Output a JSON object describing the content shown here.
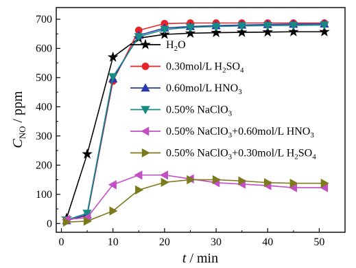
{
  "chart_data": {
    "type": "line",
    "xlabel": {
      "symbol": "t",
      "unit": " / min"
    },
    "ylabel": {
      "symbol": "C",
      "subscript": "NO",
      "unit": " / ppm"
    },
    "xlim": [
      -1,
      55
    ],
    "ylim": [
      -30,
      740
    ],
    "xticks": [
      0,
      10,
      20,
      30,
      40,
      50
    ],
    "yticks": [
      0,
      100,
      200,
      300,
      400,
      500,
      600,
      700
    ],
    "xtick_labels": [
      "0",
      "10",
      "20",
      "30",
      "40",
      "50"
    ],
    "ytick_labels": [
      "0",
      "100",
      "200",
      "300",
      "400",
      "500",
      "600",
      "700"
    ],
    "grid": false,
    "legend_position": "center-right",
    "series": [
      {
        "name": "H2O",
        "legend_parts": [
          [
            "H",
            ""
          ],
          [
            "2",
            "sub"
          ],
          [
            "O",
            ""
          ]
        ],
        "color": "#000000",
        "marker": "star",
        "x": [
          1,
          5,
          10,
          15,
          20,
          25,
          30,
          35,
          40,
          45,
          51
        ],
        "y": [
          18,
          238,
          570,
          635,
          648,
          652,
          654,
          655,
          656,
          657,
          657
        ]
      },
      {
        "name": "0.30mol/L H2SO4",
        "legend_parts": [
          [
            "0.30mol/L H",
            ""
          ],
          [
            "2",
            "sub"
          ],
          [
            "SO",
            ""
          ],
          [
            "4",
            "sub"
          ]
        ],
        "color": "#e8232a",
        "marker": "circle",
        "x": [
          1,
          5,
          10,
          15,
          20,
          25,
          30,
          35,
          40,
          45,
          51
        ],
        "y": [
          10,
          28,
          488,
          662,
          685,
          687,
          687,
          687,
          687,
          687,
          687
        ]
      },
      {
        "name": "0.60mol/L HNO3",
        "legend_parts": [
          [
            "0.60mol/L HNO",
            ""
          ],
          [
            "3",
            "sub"
          ]
        ],
        "color": "#2a3aa8",
        "marker": "triangle-up",
        "x": [
          1,
          5,
          10,
          15,
          20,
          25,
          30,
          35,
          40,
          45,
          51
        ],
        "y": [
          10,
          30,
          496,
          645,
          670,
          675,
          678,
          680,
          682,
          683,
          684
        ]
      },
      {
        "name": "0.50% NaClO3",
        "legend_parts": [
          [
            "0.50% NaClO",
            ""
          ],
          [
            "3",
            "sub"
          ]
        ],
        "color": "#178a84",
        "marker": "triangle-down",
        "x": [
          1,
          5,
          10,
          15,
          20,
          25,
          30,
          35,
          40,
          45,
          51
        ],
        "y": [
          12,
          35,
          503,
          640,
          665,
          672,
          675,
          677,
          678,
          679,
          680
        ]
      },
      {
        "name": "0.50% NaClO3+0.60mol/L HNO3",
        "legend_parts": [
          [
            "0.50% NaClO",
            ""
          ],
          [
            "3",
            "sub"
          ],
          [
            "+0.60mol/L HNO",
            ""
          ],
          [
            "3",
            "sub"
          ]
        ],
        "color": "#c24fc4",
        "marker": "triangle-left",
        "x": [
          1,
          5,
          10,
          15,
          20,
          25,
          30,
          35,
          40,
          45,
          51
        ],
        "y": [
          14,
          20,
          133,
          166,
          166,
          153,
          140,
          135,
          130,
          123,
          123
        ]
      },
      {
        "name": "0.50% NaClO3+0.30mol/L H2SO4",
        "legend_parts": [
          [
            "0.50% NaClO",
            ""
          ],
          [
            "3",
            "sub"
          ],
          [
            "+0.30mol/L H",
            ""
          ],
          [
            "2",
            "sub"
          ],
          [
            "SO",
            ""
          ],
          [
            "4",
            "sub"
          ]
        ],
        "color": "#7c7a1c",
        "marker": "triangle-right",
        "x": [
          1,
          5,
          10,
          15,
          20,
          25,
          30,
          35,
          40,
          45,
          51
        ],
        "y": [
          5,
          8,
          43,
          115,
          141,
          150,
          150,
          146,
          140,
          138,
          138
        ]
      }
    ]
  }
}
